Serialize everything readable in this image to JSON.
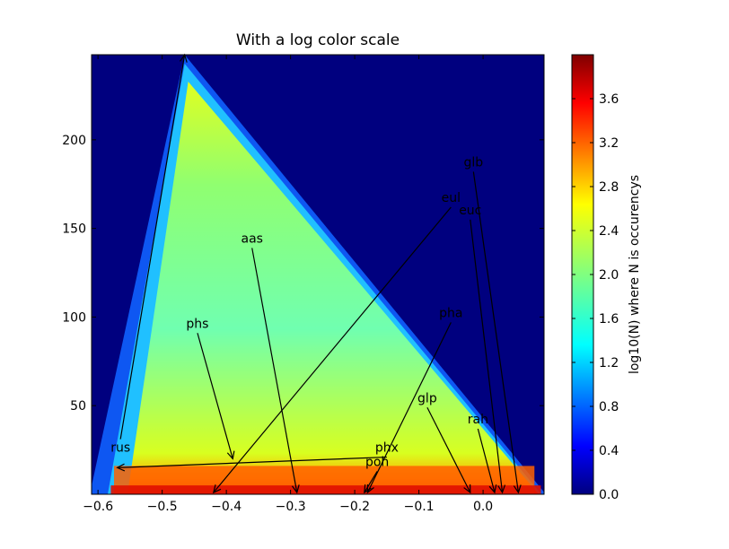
{
  "chart_data": {
    "type": "heatmap",
    "subtype": "hexbin",
    "title": "With a log color scale",
    "xlabel": "",
    "ylabel": "",
    "xlim": [
      -0.61,
      0.095
    ],
    "ylim": [
      0,
      248
    ],
    "xticks": [
      -0.6,
      -0.5,
      -0.4,
      -0.3,
      -0.2,
      -0.1,
      0.0
    ],
    "xtick_labels": [
      "−0.6",
      "−0.5",
      "−0.4",
      "−0.3",
      "−0.2",
      "−0.1",
      "0.0"
    ],
    "yticks": [
      50,
      100,
      150,
      200
    ],
    "ytick_labels": [
      "50",
      "100",
      "150",
      "200"
    ],
    "colormap": "jet",
    "background_color": "#00007f",
    "density_region": {
      "apex": [
        -0.465,
        248
      ],
      "base_left": [
        -0.61,
        0
      ],
      "base_right": [
        0.095,
        0
      ]
    },
    "colorbar": {
      "label": "log10(N) where N is occurencys",
      "range": [
        0.0,
        4.0
      ],
      "ticks": [
        0.0,
        0.4,
        0.8,
        1.2,
        1.6,
        2.0,
        2.4,
        2.8,
        3.2,
        3.6
      ],
      "tick_labels": [
        "0.0",
        "0.4",
        "0.8",
        "1.2",
        "1.6",
        "2.0",
        "2.4",
        "2.8",
        "3.2",
        "3.6"
      ]
    },
    "annotations": [
      {
        "text": "rus",
        "text_xy": [
          -0.565,
          24
        ],
        "arrow_xy": [
          -0.465,
          248
        ]
      },
      {
        "text": "phx",
        "text_xy": [
          -0.15,
          24
        ],
        "arrow_xy": [
          -0.57,
          15
        ]
      },
      {
        "text": "aas",
        "text_xy": [
          -0.36,
          142
        ],
        "arrow_xy": [
          -0.29,
          1
        ]
      },
      {
        "text": "phs",
        "text_xy": [
          -0.445,
          94
        ],
        "arrow_xy": [
          -0.39,
          20
        ]
      },
      {
        "text": "eul",
        "text_xy": [
          -0.05,
          165
        ],
        "arrow_xy": [
          -0.42,
          1
        ]
      },
      {
        "text": "pha",
        "text_xy": [
          -0.05,
          100
        ],
        "arrow_xy": [
          -0.18,
          1
        ]
      },
      {
        "text": "poh",
        "text_xy": [
          -0.165,
          16
        ],
        "arrow_xy": [
          -0.185,
          1
        ]
      },
      {
        "text": "glp",
        "text_xy": [
          -0.087,
          52
        ],
        "arrow_xy": [
          -0.02,
          1
        ]
      },
      {
        "text": "rah",
        "text_xy": [
          -0.008,
          40
        ],
        "arrow_xy": [
          0.018,
          1
        ]
      },
      {
        "text": "euc",
        "text_xy": [
          -0.02,
          158
        ],
        "arrow_xy": [
          0.03,
          1
        ]
      },
      {
        "text": "glb",
        "text_xy": [
          -0.015,
          185
        ],
        "arrow_xy": [
          0.055,
          1
        ]
      }
    ]
  }
}
